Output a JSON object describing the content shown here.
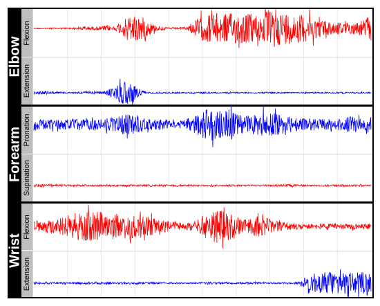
{
  "chart_data": {
    "type": "line",
    "title": "",
    "xlabel": "",
    "ylabel": "",
    "grid": "vertical light gray lines",
    "groups": [
      {
        "name": "Elbow",
        "series": [
          {
            "name": "Flexion",
            "color": "#ff0000",
            "envelope": [
              0.03,
              0.03,
              0.04,
              0.04,
              0.05,
              0.12,
              0.08,
              0.15,
              0.12,
              0.55,
              0.85,
              0.5,
              0.15,
              0.06,
              0.05,
              0.08,
              0.55,
              0.8,
              0.85,
              0.85,
              0.9,
              0.85,
              0.8,
              0.9,
              0.95,
              0.85,
              0.8,
              0.7,
              0.5,
              0.4,
              0.35,
              0.3,
              0.45,
              0.7
            ]
          },
          {
            "name": "Extension",
            "color": "#0000ff",
            "envelope": [
              0.08,
              0.1,
              0.06,
              0.04,
              0.04,
              0.08,
              0.06,
              0.1,
              0.4,
              0.75,
              0.35,
              0.05,
              0.04,
              0.04,
              0.04,
              0.04,
              0.04,
              0.04,
              0.04,
              0.04,
              0.04,
              0.04,
              0.04,
              0.04,
              0.04,
              0.04,
              0.04,
              0.04,
              0.04,
              0.04,
              0.04,
              0.04,
              0.04,
              0.04
            ]
          }
        ]
      },
      {
        "name": "Forearm",
        "series": [
          {
            "name": "Pronation",
            "color": "#0000ff",
            "envelope": [
              0.35,
              0.3,
              0.28,
              0.3,
              0.35,
              0.3,
              0.25,
              0.35,
              0.4,
              0.6,
              0.55,
              0.3,
              0.3,
              0.28,
              0.15,
              0.35,
              0.6,
              0.9,
              0.85,
              0.8,
              0.6,
              0.5,
              0.6,
              0.7,
              0.6,
              0.45,
              0.35,
              0.35,
              0.3,
              0.3,
              0.35,
              0.45,
              0.35,
              0.3
            ]
          },
          {
            "name": "Supination",
            "color": "#ff0000",
            "envelope": [
              0.08,
              0.08,
              0.06,
              0.05,
              0.05,
              0.05,
              0.05,
              0.05,
              0.05,
              0.05,
              0.05,
              0.05,
              0.05,
              0.05,
              0.05,
              0.05,
              0.05,
              0.05,
              0.05,
              0.05,
              0.05,
              0.05,
              0.05,
              0.05,
              0.05,
              0.08,
              0.06,
              0.05,
              0.05,
              0.05,
              0.05,
              0.05,
              0.05,
              0.05
            ]
          }
        ]
      },
      {
        "name": "Wrist",
        "series": [
          {
            "name": "Flexion",
            "color": "#ff0000",
            "envelope": [
              0.3,
              0.35,
              0.45,
              0.55,
              0.75,
              0.8,
              0.85,
              0.8,
              0.7,
              0.7,
              0.65,
              0.6,
              0.4,
              0.3,
              0.25,
              0.2,
              0.35,
              0.75,
              0.95,
              0.8,
              0.4,
              0.45,
              0.6,
              0.45,
              0.25,
              0.2,
              0.15,
              0.15,
              0.15,
              0.15,
              0.15,
              0.15,
              0.15,
              0.15
            ]
          },
          {
            "name": "Extension",
            "color": "#0000ff",
            "envelope": [
              0.08,
              0.08,
              0.06,
              0.06,
              0.08,
              0.1,
              0.08,
              0.1,
              0.06,
              0.06,
              0.08,
              0.06,
              0.06,
              0.06,
              0.05,
              0.05,
              0.05,
              0.1,
              0.08,
              0.06,
              0.06,
              0.08,
              0.06,
              0.05,
              0.05,
              0.05,
              0.1,
              0.75,
              0.8,
              0.85,
              0.8,
              0.75,
              0.8,
              0.85
            ]
          }
        ]
      }
    ]
  }
}
